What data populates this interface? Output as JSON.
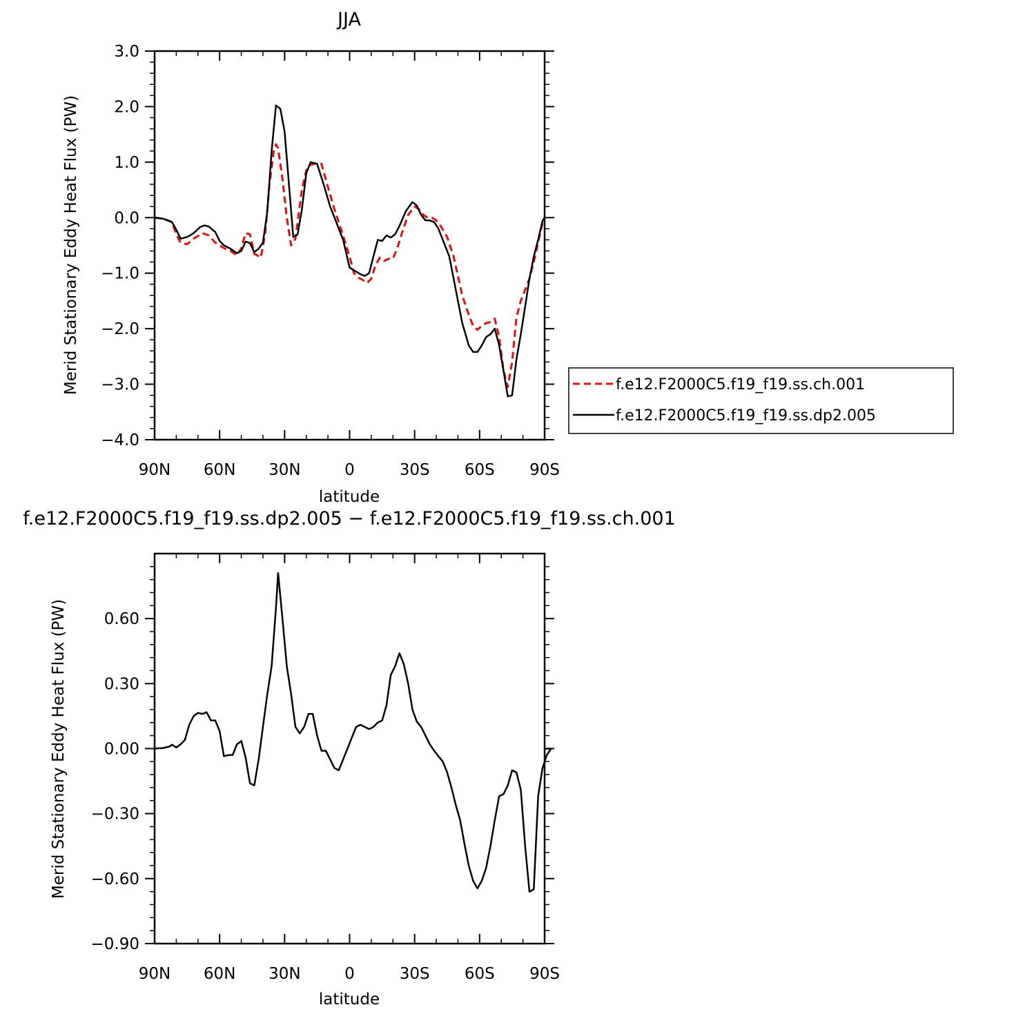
{
  "chart_data": [
    {
      "type": "line",
      "title": "JJA",
      "xlabel": "latitude",
      "ylabel": "Merid Stationary Eddy Heat Flux (PW)",
      "xlim": [
        90,
        -90
      ],
      "ylim": [
        -4.0,
        3.0
      ],
      "x_ticks": [
        90,
        60,
        30,
        0,
        -30,
        -60,
        -90
      ],
      "x_tick_labels": [
        "90N",
        "60N",
        "30N",
        "0",
        "30S",
        "60S",
        "90S"
      ],
      "y_ticks": [
        -4.0,
        -3.0,
        -2.0,
        -1.0,
        0.0,
        1.0,
        2.0,
        3.0
      ],
      "y_tick_labels": [
        "−4.0",
        "−3.0",
        "−2.0",
        "−1.0",
        "0.0",
        "1.0",
        "2.0",
        "3.0"
      ],
      "grid": false,
      "legend_position": "right",
      "series": [
        {
          "name": "f.e12.F2000C5.f19_f19.ss.ch.001",
          "color": "#e01010",
          "dash": "dashed",
          "points": [
            [
              90,
              0.0
            ],
            [
              86,
              -0.02
            ],
            [
              82,
              -0.08
            ],
            [
              80,
              -0.3
            ],
            [
              78,
              -0.45
            ],
            [
              75,
              -0.48
            ],
            [
              72,
              -0.38
            ],
            [
              68,
              -0.28
            ],
            [
              65,
              -0.32
            ],
            [
              62,
              -0.45
            ],
            [
              58,
              -0.55
            ],
            [
              55,
              -0.6
            ],
            [
              52,
              -0.68
            ],
            [
              50,
              -0.55
            ],
            [
              48,
              -0.28
            ],
            [
              46,
              -0.3
            ],
            [
              44,
              -0.65
            ],
            [
              41,
              -0.72
            ],
            [
              39,
              -0.3
            ],
            [
              37,
              0.6
            ],
            [
              35,
              1.2
            ],
            [
              34,
              1.32
            ],
            [
              33,
              1.25
            ],
            [
              31,
              0.7
            ],
            [
              29,
              0.0
            ],
            [
              27,
              -0.5
            ],
            [
              25,
              -0.38
            ],
            [
              22,
              0.5
            ],
            [
              20,
              0.85
            ],
            [
              18,
              0.95
            ],
            [
              15,
              0.98
            ],
            [
              13,
              0.97
            ],
            [
              10,
              0.55
            ],
            [
              7,
              0.15
            ],
            [
              4,
              -0.2
            ],
            [
              2,
              -0.45
            ],
            [
              0,
              -0.7
            ],
            [
              -2,
              -1.0
            ],
            [
              -4,
              -1.08
            ],
            [
              -6,
              -1.12
            ],
            [
              -8,
              -1.18
            ],
            [
              -10,
              -1.1
            ],
            [
              -12,
              -0.85
            ],
            [
              -14,
              -0.72
            ],
            [
              -16,
              -0.78
            ],
            [
              -18,
              -0.74
            ],
            [
              -20,
              -0.74
            ],
            [
              -22,
              -0.55
            ],
            [
              -24,
              -0.3
            ],
            [
              -27,
              0.05
            ],
            [
              -30,
              0.2
            ],
            [
              -32,
              0.15
            ],
            [
              -34,
              0.05
            ],
            [
              -36,
              0.0
            ],
            [
              -38,
              0.0
            ],
            [
              -40,
              -0.05
            ],
            [
              -42,
              -0.15
            ],
            [
              -45,
              -0.35
            ],
            [
              -48,
              -0.7
            ],
            [
              -50,
              -1.05
            ],
            [
              -52,
              -1.4
            ],
            [
              -55,
              -1.75
            ],
            [
              -57,
              -1.95
            ],
            [
              -59,
              -2.02
            ],
            [
              -61,
              -1.95
            ],
            [
              -63,
              -1.9
            ],
            [
              -65,
              -1.88
            ],
            [
              -67,
              -1.82
            ],
            [
              -69,
              -2.15
            ],
            [
              -71,
              -2.75
            ],
            [
              -73,
              -3.05
            ],
            [
              -75,
              -2.6
            ],
            [
              -77,
              -1.8
            ],
            [
              -79,
              -1.5
            ],
            [
              -81,
              -1.3
            ],
            [
              -83,
              -1.1
            ],
            [
              -85,
              -0.8
            ],
            [
              -87,
              -0.45
            ],
            [
              -89,
              -0.1
            ],
            [
              -90,
              0.0
            ]
          ]
        },
        {
          "name": "f.e12.F2000C5.f19_f19.ss.dp2.005",
          "color": "#000000",
          "dash": "solid",
          "points": [
            [
              90,
              0.0
            ],
            [
              86,
              -0.02
            ],
            [
              82,
              -0.08
            ],
            [
              80,
              -0.22
            ],
            [
              78,
              -0.38
            ],
            [
              75,
              -0.35
            ],
            [
              72,
              -0.28
            ],
            [
              69,
              -0.17
            ],
            [
              67,
              -0.14
            ],
            [
              65,
              -0.16
            ],
            [
              62,
              -0.26
            ],
            [
              60,
              -0.42
            ],
            [
              58,
              -0.5
            ],
            [
              55,
              -0.56
            ],
            [
              52,
              -0.64
            ],
            [
              50,
              -0.6
            ],
            [
              48,
              -0.43
            ],
            [
              46,
              -0.46
            ],
            [
              44,
              -0.62
            ],
            [
              42,
              -0.56
            ],
            [
              40,
              -0.45
            ],
            [
              38,
              0.1
            ],
            [
              36,
              1.2
            ],
            [
              34,
              2.02
            ],
            [
              32,
              1.96
            ],
            [
              30,
              1.55
            ],
            [
              28,
              0.6
            ],
            [
              26,
              -0.35
            ],
            [
              24,
              -0.3
            ],
            [
              22,
              0.15
            ],
            [
              20,
              0.8
            ],
            [
              18,
              1.0
            ],
            [
              15,
              0.97
            ],
            [
              12,
              0.6
            ],
            [
              9,
              0.2
            ],
            [
              6,
              -0.1
            ],
            [
              3,
              -0.4
            ],
            [
              0,
              -0.9
            ],
            [
              -2,
              -0.95
            ],
            [
              -5,
              -1.02
            ],
            [
              -7,
              -1.05
            ],
            [
              -9,
              -1.0
            ],
            [
              -11,
              -0.7
            ],
            [
              -13,
              -0.4
            ],
            [
              -15,
              -0.42
            ],
            [
              -17,
              -0.32
            ],
            [
              -19,
              -0.36
            ],
            [
              -21,
              -0.3
            ],
            [
              -23,
              -0.15
            ],
            [
              -26,
              0.12
            ],
            [
              -29,
              0.28
            ],
            [
              -31,
              0.22
            ],
            [
              -33,
              0.05
            ],
            [
              -35,
              -0.05
            ],
            [
              -37,
              -0.05
            ],
            [
              -39,
              -0.08
            ],
            [
              -41,
              -0.2
            ],
            [
              -43,
              -0.4
            ],
            [
              -46,
              -0.7
            ],
            [
              -48,
              -1.1
            ],
            [
              -50,
              -1.5
            ],
            [
              -52,
              -1.9
            ],
            [
              -55,
              -2.3
            ],
            [
              -57,
              -2.42
            ],
            [
              -59,
              -2.42
            ],
            [
              -61,
              -2.3
            ],
            [
              -63,
              -2.15
            ],
            [
              -65,
              -2.1
            ],
            [
              -67,
              -2.0
            ],
            [
              -69,
              -2.3
            ],
            [
              -71,
              -2.75
            ],
            [
              -73,
              -3.22
            ],
            [
              -75,
              -3.2
            ],
            [
              -77,
              -2.55
            ],
            [
              -79,
              -2.1
            ],
            [
              -81,
              -1.6
            ],
            [
              -83,
              -1.1
            ],
            [
              -85,
              -0.7
            ],
            [
              -87,
              -0.4
            ],
            [
              -89,
              -0.06
            ],
            [
              -90,
              0.0
            ]
          ]
        }
      ]
    },
    {
      "type": "line",
      "title": "f.e12.F2000C5.f19_f19.ss.dp2.005 − f.e12.F2000C5.f19_f19.ss.ch.001",
      "xlabel": "latitude",
      "ylabel": "Merid Stationary Eddy Heat Flux (PW)",
      "xlim": [
        90,
        -90
      ],
      "ylim": [
        -0.9,
        0.9
      ],
      "x_ticks": [
        90,
        60,
        30,
        0,
        -30,
        -60,
        -90
      ],
      "x_tick_labels": [
        "90N",
        "60N",
        "30N",
        "0",
        "30S",
        "60S",
        "90S"
      ],
      "y_ticks": [
        -0.9,
        -0.6,
        -0.3,
        0.0,
        0.3,
        0.6
      ],
      "y_tick_labels": [
        "−0.90",
        "−0.60",
        "−0.30",
        "0.00",
        "0.30",
        "0.60"
      ],
      "grid": false,
      "series": [
        {
          "color": "#000000",
          "dash": "solid",
          "points": [
            [
              90,
              0.0
            ],
            [
              86,
              0.003
            ],
            [
              83,
              0.01
            ],
            [
              82,
              0.018
            ],
            [
              80,
              0.005
            ],
            [
              78,
              0.02
            ],
            [
              76,
              0.04
            ],
            [
              74,
              0.11
            ],
            [
              72,
              0.15
            ],
            [
              70,
              0.165
            ],
            [
              68,
              0.16
            ],
            [
              66,
              0.168
            ],
            [
              64,
              0.13
            ],
            [
              62,
              0.13
            ],
            [
              60,
              0.08
            ],
            [
              58,
              -0.035
            ],
            [
              56,
              -0.03
            ],
            [
              54,
              -0.03
            ],
            [
              52,
              0.02
            ],
            [
              50,
              0.035
            ],
            [
              48,
              -0.04
            ],
            [
              46,
              -0.16
            ],
            [
              44,
              -0.17
            ],
            [
              42,
              -0.05
            ],
            [
              40,
              0.1
            ],
            [
              38,
              0.25
            ],
            [
              36,
              0.38
            ],
            [
              34,
              0.65
            ],
            [
              33,
              0.81
            ],
            [
              31,
              0.6
            ],
            [
              29,
              0.38
            ],
            [
              27,
              0.25
            ],
            [
              25,
              0.1
            ],
            [
              23,
              0.07
            ],
            [
              21,
              0.1
            ],
            [
              19,
              0.16
            ],
            [
              17,
              0.16
            ],
            [
              15,
              0.06
            ],
            [
              13,
              -0.01
            ],
            [
              11,
              -0.01
            ],
            [
              9,
              -0.05
            ],
            [
              7,
              -0.09
            ],
            [
              5,
              -0.1
            ],
            [
              3,
              -0.05
            ],
            [
              1,
              0.0
            ],
            [
              -1,
              0.05
            ],
            [
              -3,
              0.1
            ],
            [
              -5,
              0.11
            ],
            [
              -7,
              0.1
            ],
            [
              -9,
              0.09
            ],
            [
              -11,
              0.1
            ],
            [
              -13,
              0.12
            ],
            [
              -15,
              0.13
            ],
            [
              -17,
              0.2
            ],
            [
              -19,
              0.34
            ],
            [
              -21,
              0.38
            ],
            [
              -23,
              0.44
            ],
            [
              -25,
              0.39
            ],
            [
              -27,
              0.3
            ],
            [
              -29,
              0.18
            ],
            [
              -31,
              0.125
            ],
            [
              -33,
              0.1
            ],
            [
              -35,
              0.06
            ],
            [
              -37,
              0.02
            ],
            [
              -39,
              -0.01
            ],
            [
              -41,
              -0.035
            ],
            [
              -43,
              -0.06
            ],
            [
              -45,
              -0.11
            ],
            [
              -47,
              -0.18
            ],
            [
              -49,
              -0.26
            ],
            [
              -51,
              -0.33
            ],
            [
              -53,
              -0.44
            ],
            [
              -55,
              -0.54
            ],
            [
              -57,
              -0.61
            ],
            [
              -59,
              -0.645
            ],
            [
              -61,
              -0.61
            ],
            [
              -63,
              -0.55
            ],
            [
              -65,
              -0.45
            ],
            [
              -67,
              -0.33
            ],
            [
              -69,
              -0.22
            ],
            [
              -71,
              -0.21
            ],
            [
              -73,
              -0.17
            ],
            [
              -75,
              -0.1
            ],
            [
              -77,
              -0.11
            ],
            [
              -79,
              -0.19
            ],
            [
              -81,
              -0.45
            ],
            [
              -83,
              -0.66
            ],
            [
              -85,
              -0.65
            ],
            [
              -87,
              -0.22
            ],
            [
              -89,
              -0.09
            ],
            [
              -91,
              -0.03
            ],
            [
              -93,
              0.0
            ],
            [
              -90,
              0.0
            ]
          ]
        }
      ]
    }
  ]
}
